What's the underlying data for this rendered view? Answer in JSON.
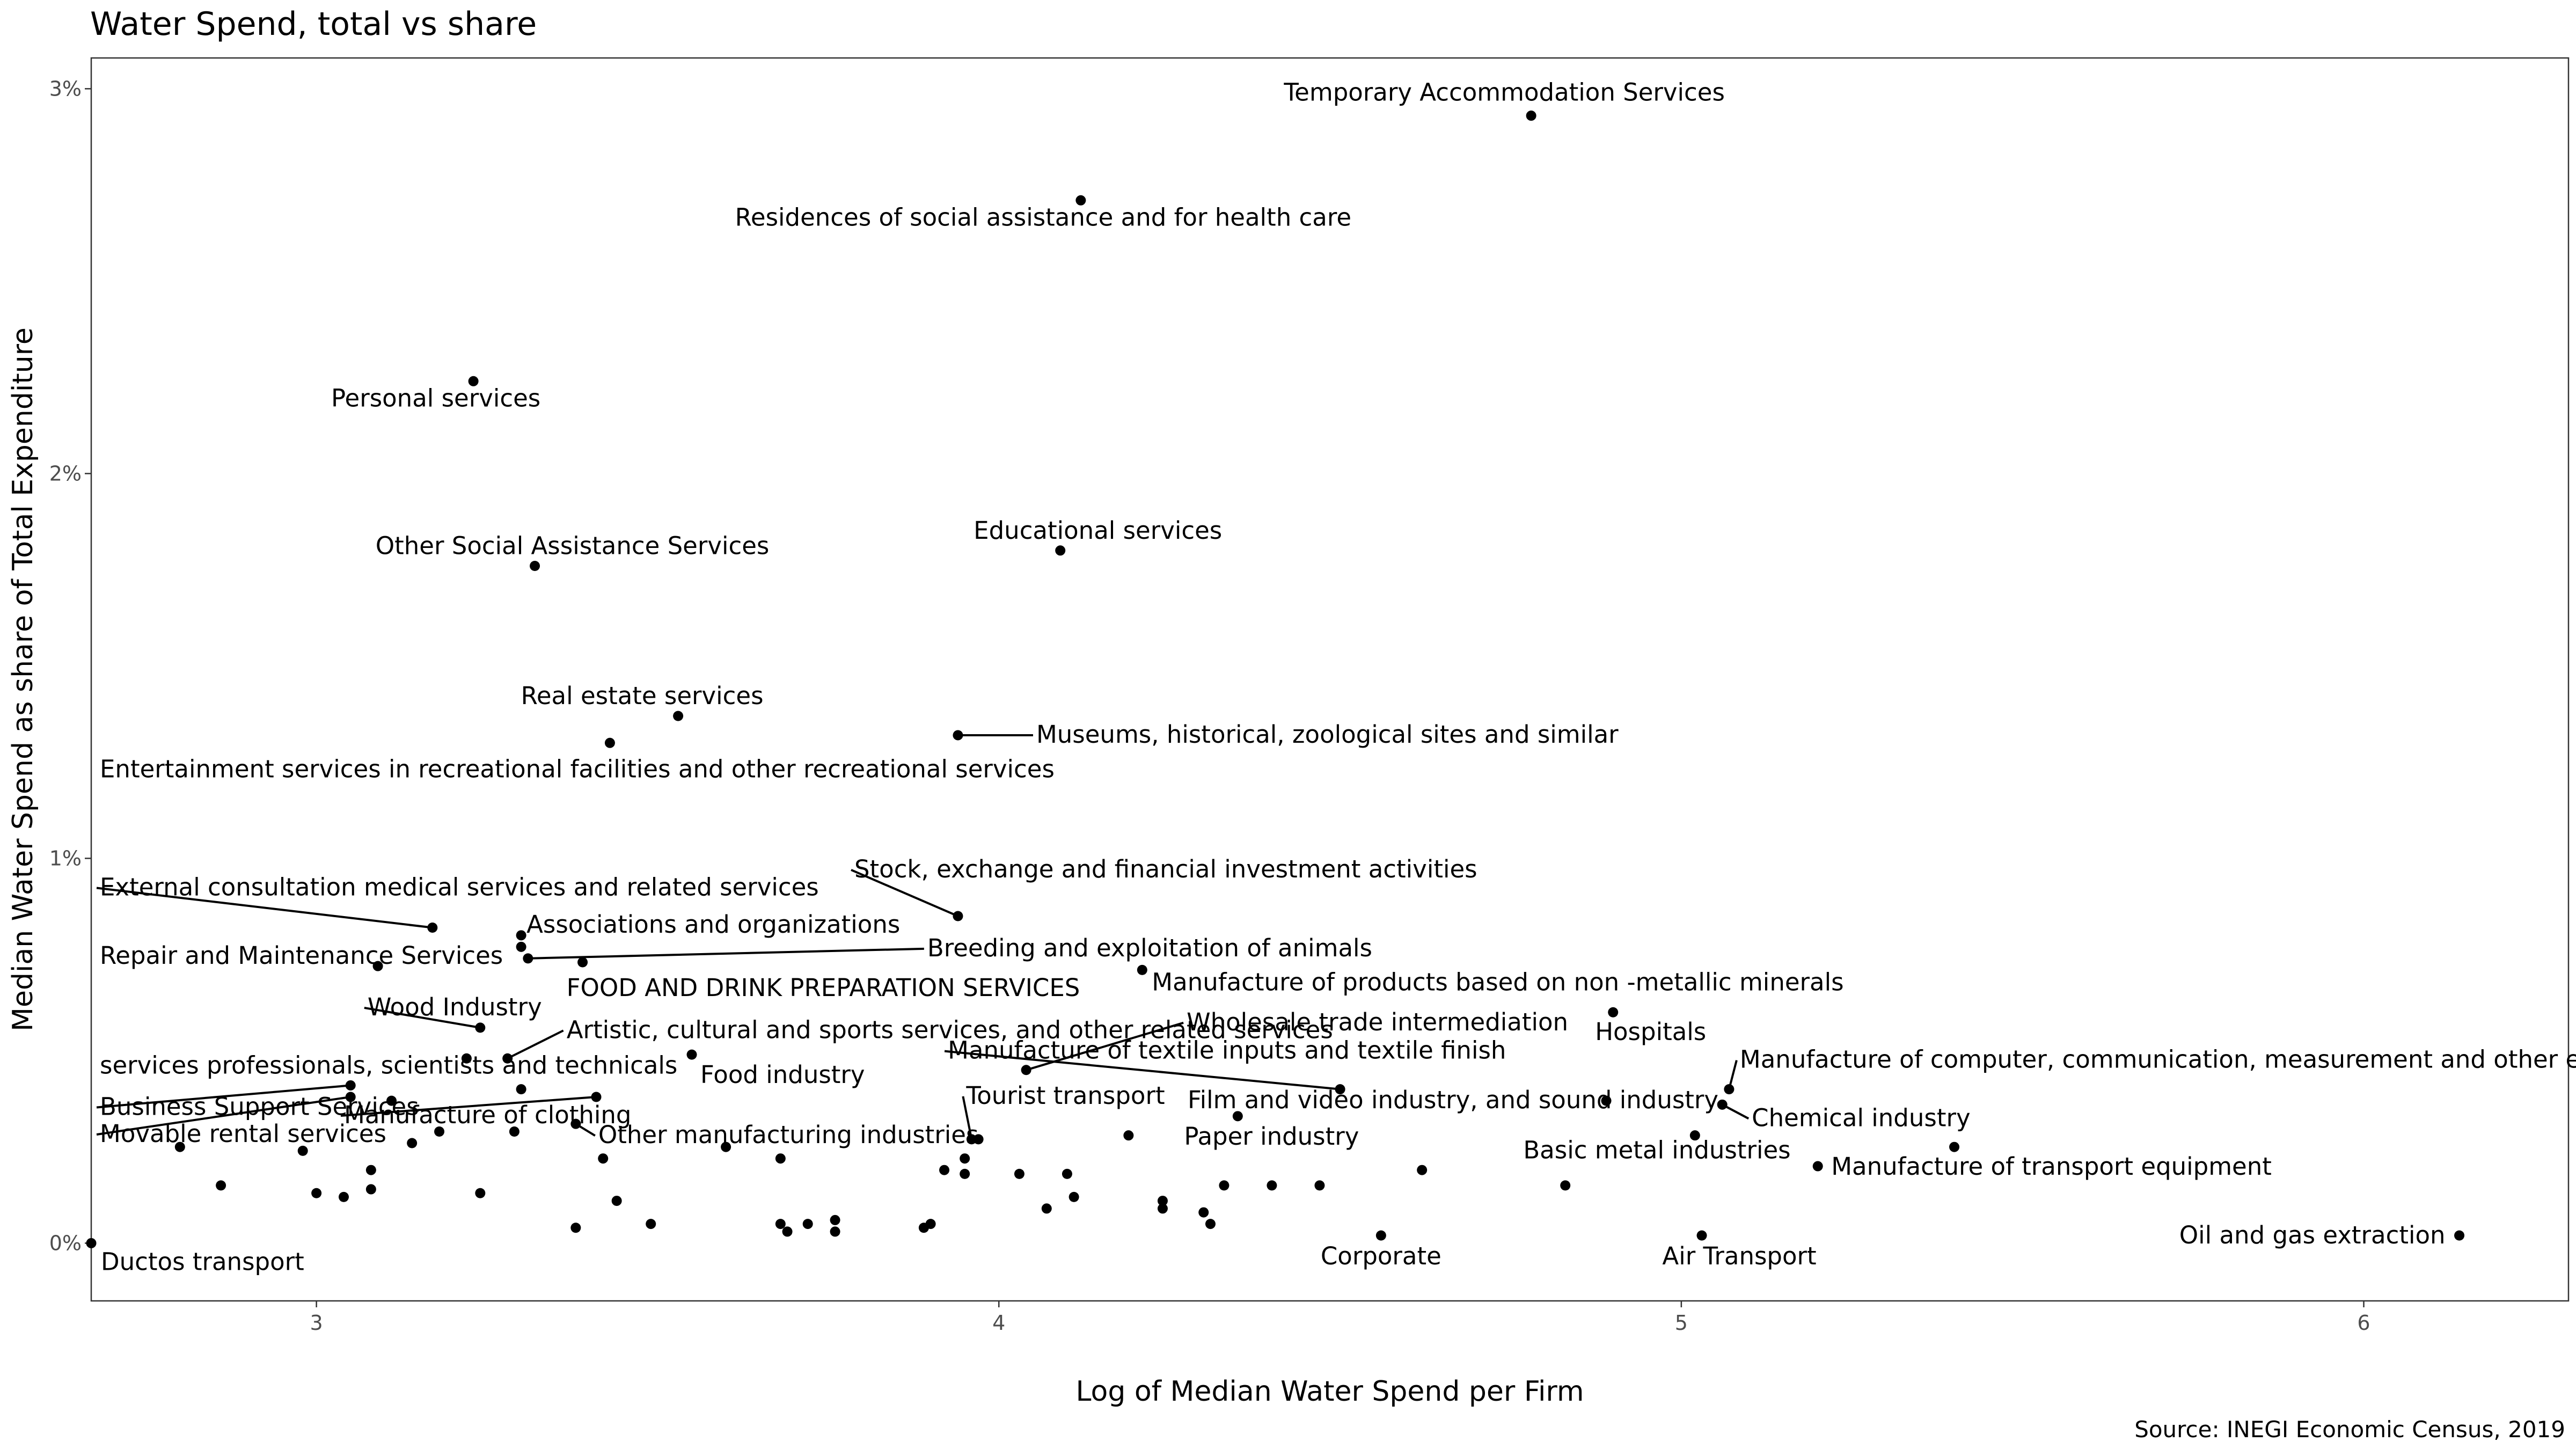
{
  "chart_data": {
    "type": "scatter",
    "title": "Water Spend, total vs share",
    "xlabel": "Log of Median Water Spend per Firm",
    "ylabel": "Median Water Spend as share of Total Expenditure",
    "caption": "Source: INEGI Economic Census, 2019",
    "xlim": [
      2.67,
      6.3
    ],
    "ylim": [
      -0.0015,
      0.0308
    ],
    "x_ticks": [
      3,
      4,
      5,
      6
    ],
    "y_ticks": [
      0,
      0.01,
      0.02,
      0.03
    ],
    "y_tick_labels": [
      "0%",
      "1%",
      "2%",
      "3%"
    ],
    "grid": false,
    "legend": "none",
    "points": [
      {
        "x": 2.67,
        "y": 0.0,
        "label": "Ductos transport"
      },
      {
        "x": 4.78,
        "y": 0.0293,
        "label": "Temporary Accommodation Services"
      },
      {
        "x": 4.12,
        "y": 0.0271,
        "label": "Residences of social assistance and for health care"
      },
      {
        "x": 3.23,
        "y": 0.0224,
        "label": "Personal services"
      },
      {
        "x": 3.32,
        "y": 0.0176,
        "label": "Other Social Assistance Services"
      },
      {
        "x": 4.09,
        "y": 0.018,
        "label": "Educational services"
      },
      {
        "x": 3.53,
        "y": 0.0137,
        "label": "Real estate services"
      },
      {
        "x": 3.43,
        "y": 0.013,
        "label": "Entertainment services in recreational facilities and other recreational services"
      },
      {
        "x": 3.94,
        "y": 0.0132,
        "label": "Museums, historical, zoological sites and similar"
      },
      {
        "x": 3.17,
        "y": 0.0082,
        "label": "External consultation medical services and related services"
      },
      {
        "x": 3.94,
        "y": 0.0085,
        "label": "Stock, exchange and financial investment activities"
      },
      {
        "x": 3.3,
        "y": 0.008,
        "label": "Associations and organizations"
      },
      {
        "x": 3.3,
        "y": 0.0077,
        "label": ""
      },
      {
        "x": 3.09,
        "y": 0.0072,
        "label": "Repair and Maintenance Services"
      },
      {
        "x": 3.31,
        "y": 0.0074,
        "label": "Breeding and exploitation of animals"
      },
      {
        "x": 3.39,
        "y": 0.0073,
        "label": "FOOD AND DRINK PREPARATION SERVICES"
      },
      {
        "x": 4.21,
        "y": 0.0071,
        "label": "Manufacture of products based on non -metallic minerals"
      },
      {
        "x": 4.9,
        "y": 0.006,
        "label": "Hospitals"
      },
      {
        "x": 3.24,
        "y": 0.0056,
        "label": "Wood Industry"
      },
      {
        "x": 3.28,
        "y": 0.0048,
        "label": "Artistic, cultural and sports services, and other related services"
      },
      {
        "x": 3.22,
        "y": 0.0048,
        "label": "services professionals, scientists and technicals"
      },
      {
        "x": 3.55,
        "y": 0.0049,
        "label": "Food industry"
      },
      {
        "x": 4.04,
        "y": 0.0045,
        "label": "Wholesale trade intermediation"
      },
      {
        "x": 3.05,
        "y": 0.0041,
        "label": "Business Support Services"
      },
      {
        "x": 3.05,
        "y": 0.0038,
        "label": "Movable rental services"
      },
      {
        "x": 3.11,
        "y": 0.0037,
        "label": ""
      },
      {
        "x": 3.3,
        "y": 0.004,
        "label": ""
      },
      {
        "x": 3.41,
        "y": 0.0038,
        "label": "Manufacture of clothing"
      },
      {
        "x": 4.5,
        "y": 0.004,
        "label": "Manufacture of textile inputs and textile finish"
      },
      {
        "x": 5.07,
        "y": 0.004,
        "label": "Manufacture of computer, communication, measurement and other electronic equipment, components and accessories"
      },
      {
        "x": 5.06,
        "y": 0.0036,
        "label": "Chemical industry"
      },
      {
        "x": 4.89,
        "y": 0.0037,
        "label": "Film and video industry, and sound industry"
      },
      {
        "x": 4.35,
        "y": 0.0033,
        "label": "Paper industry"
      },
      {
        "x": 3.38,
        "y": 0.0031,
        "label": "Other manufacturing industries"
      },
      {
        "x": 3.96,
        "y": 0.0027,
        "label": "Tourist transport"
      },
      {
        "x": 3.97,
        "y": 0.0027,
        "label": ""
      },
      {
        "x": 4.19,
        "y": 0.0028,
        "label": ""
      },
      {
        "x": 5.02,
        "y": 0.0028,
        "label": "Basic metal industries"
      },
      {
        "x": 5.4,
        "y": 0.0025,
        "label": ""
      },
      {
        "x": 5.2,
        "y": 0.002,
        "label": "Manufacture of transport equipment"
      },
      {
        "x": 4.83,
        "y": 0.0015,
        "label": ""
      },
      {
        "x": 4.62,
        "y": 0.0019,
        "label": ""
      },
      {
        "x": 2.8,
        "y": 0.0025,
        "label": ""
      },
      {
        "x": 2.86,
        "y": 0.0015,
        "label": ""
      },
      {
        "x": 2.98,
        "y": 0.0024,
        "label": ""
      },
      {
        "x": 3.0,
        "y": 0.0013,
        "label": ""
      },
      {
        "x": 3.04,
        "y": 0.0012,
        "label": ""
      },
      {
        "x": 3.08,
        "y": 0.0019,
        "label": ""
      },
      {
        "x": 3.08,
        "y": 0.0014,
        "label": ""
      },
      {
        "x": 3.14,
        "y": 0.0026,
        "label": ""
      },
      {
        "x": 3.18,
        "y": 0.0029,
        "label": ""
      },
      {
        "x": 3.24,
        "y": 0.0013,
        "label": ""
      },
      {
        "x": 3.29,
        "y": 0.0029,
        "label": ""
      },
      {
        "x": 3.38,
        "y": 0.0004,
        "label": ""
      },
      {
        "x": 3.42,
        "y": 0.0022,
        "label": ""
      },
      {
        "x": 3.44,
        "y": 0.0011,
        "label": ""
      },
      {
        "x": 3.49,
        "y": 0.0005,
        "label": ""
      },
      {
        "x": 3.6,
        "y": 0.0025,
        "label": ""
      },
      {
        "x": 3.68,
        "y": 0.0022,
        "label": ""
      },
      {
        "x": 3.68,
        "y": 0.0005,
        "label": ""
      },
      {
        "x": 3.69,
        "y": 0.0003,
        "label": ""
      },
      {
        "x": 3.72,
        "y": 0.0005,
        "label": ""
      },
      {
        "x": 3.76,
        "y": 0.0006,
        "label": ""
      },
      {
        "x": 3.76,
        "y": 0.0003,
        "label": ""
      },
      {
        "x": 3.89,
        "y": 0.0004,
        "label": ""
      },
      {
        "x": 3.9,
        "y": 0.0005,
        "label": ""
      },
      {
        "x": 3.92,
        "y": 0.0019,
        "label": ""
      },
      {
        "x": 3.95,
        "y": 0.0022,
        "label": ""
      },
      {
        "x": 3.95,
        "y": 0.0018,
        "label": ""
      },
      {
        "x": 4.03,
        "y": 0.0018,
        "label": ""
      },
      {
        "x": 4.07,
        "y": 0.0009,
        "label": ""
      },
      {
        "x": 4.1,
        "y": 0.0018,
        "label": ""
      },
      {
        "x": 4.11,
        "y": 0.0012,
        "label": ""
      },
      {
        "x": 4.24,
        "y": 0.0011,
        "label": ""
      },
      {
        "x": 4.24,
        "y": 0.0009,
        "label": ""
      },
      {
        "x": 4.3,
        "y": 0.0008,
        "label": ""
      },
      {
        "x": 4.31,
        "y": 0.0005,
        "label": ""
      },
      {
        "x": 4.33,
        "y": 0.0015,
        "label": ""
      },
      {
        "x": 4.4,
        "y": 0.0015,
        "label": ""
      },
      {
        "x": 4.47,
        "y": 0.0015,
        "label": ""
      },
      {
        "x": 4.56,
        "y": 0.0002,
        "label": "Corporate"
      },
      {
        "x": 5.03,
        "y": 0.0002,
        "label": "Air Transport"
      },
      {
        "x": 6.14,
        "y": 0.0002,
        "label": "Oil and gas extraction"
      }
    ]
  }
}
